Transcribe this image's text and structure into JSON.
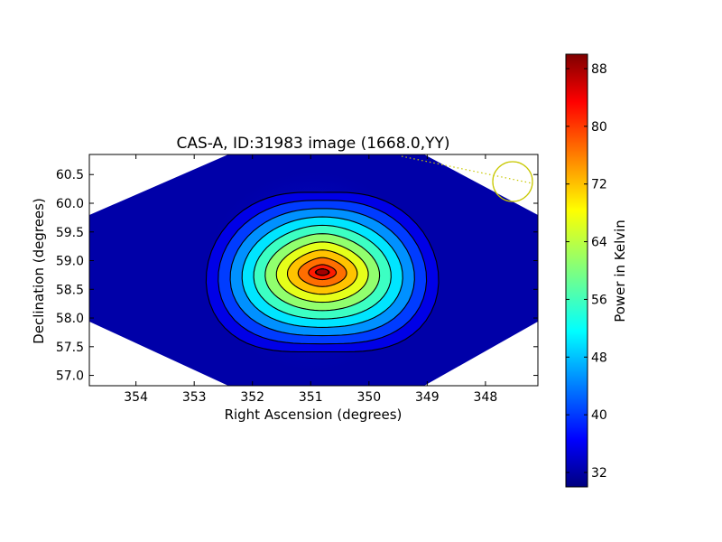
{
  "chart_data": {
    "type": "heatmap",
    "title": "CAS-A, ID:31983 image (1668.0,YY)",
    "xlabel": "Right Ascension (degrees)",
    "ylabel": "Declination (degrees)",
    "xlim": [
      354.8,
      347.1
    ],
    "ylim": [
      56.82,
      60.85
    ],
    "x_ticks": [
      "354",
      "353",
      "352",
      "351",
      "350",
      "349",
      "348"
    ],
    "y_ticks": [
      "57.0",
      "57.5",
      "58.0",
      "58.5",
      "59.0",
      "59.5",
      "60.0",
      "60.5"
    ],
    "colorbar": {
      "label": "Power in Kelvin",
      "range": [
        30,
        90
      ],
      "ticks": [
        "32",
        "40",
        "48",
        "56",
        "64",
        "72",
        "80",
        "88"
      ],
      "colormap": "jet"
    },
    "source": {
      "name": "CAS-A",
      "peak_ra": 350.8,
      "peak_dec": 58.8,
      "peak_value": 88,
      "background_value": 32
    },
    "contour_levels": [
      36,
      41,
      46,
      51,
      56,
      61,
      66,
      71,
      76,
      81,
      86
    ],
    "beam_marker": {
      "ra": 347.5,
      "dec": 60.4,
      "color": "#c8c800"
    }
  }
}
